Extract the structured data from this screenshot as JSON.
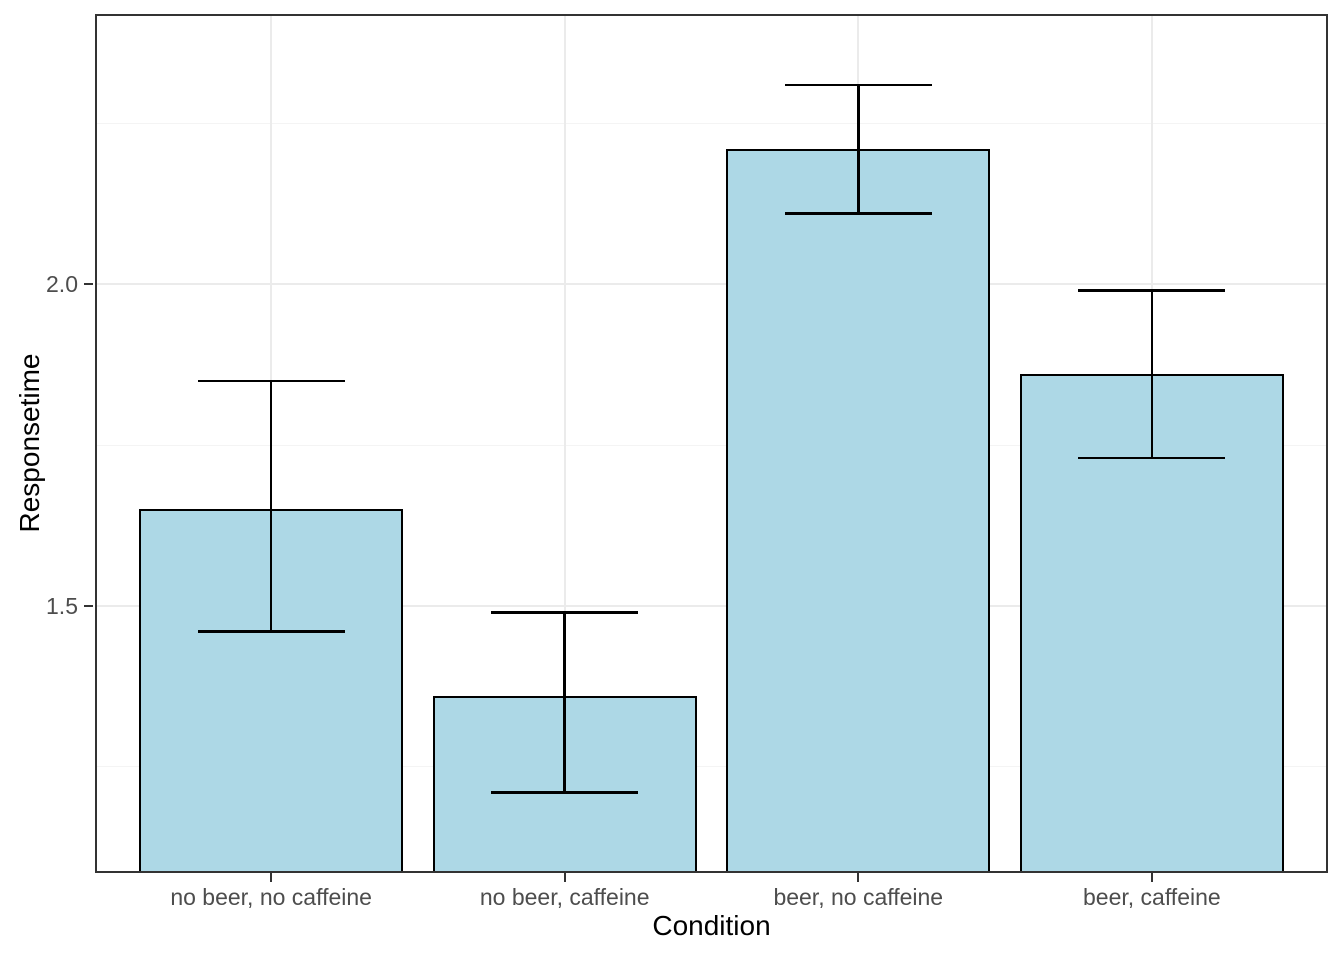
{
  "chart_data": {
    "type": "bar",
    "title": "",
    "xlabel": "Condition",
    "ylabel": "Responsetime",
    "categories": [
      "no beer, no caffeine",
      "no beer, caffeine",
      "beer, no caffeine",
      "beer, caffeine"
    ],
    "series": [
      {
        "name": "Responsetime mean",
        "values": [
          1.65,
          1.36,
          2.21,
          1.86
        ],
        "error_low": [
          1.46,
          1.21,
          2.11,
          1.73
        ],
        "error_high": [
          1.85,
          1.49,
          2.31,
          1.99
        ]
      }
    ],
    "ylim": [
      1.085,
      2.42
    ],
    "y_major_ticks": [
      1.5,
      2.0
    ],
    "y_tick_labels": [
      "1.5",
      "2.0"
    ],
    "y_minor_gridlines": [
      1.25,
      1.75,
      2.25
    ],
    "grid": "horizontal major+minor, vertical major at category centers",
    "legend": "none",
    "bar_width_fraction": 0.9,
    "error_cap_width_fraction": 0.5,
    "colors": {
      "bar_fill": "#add8e6",
      "bar_border": "#000000",
      "error_bar": "#000000",
      "panel_border": "#333333",
      "grid_major": "#ebebeb",
      "grid_minor": "#f4f4f4",
      "tick_label": "#4d4d4d",
      "axis_title": "#000000",
      "tick_mark": "#333333",
      "panel_background": "#ffffff",
      "figure_background": "#ffffff"
    }
  }
}
